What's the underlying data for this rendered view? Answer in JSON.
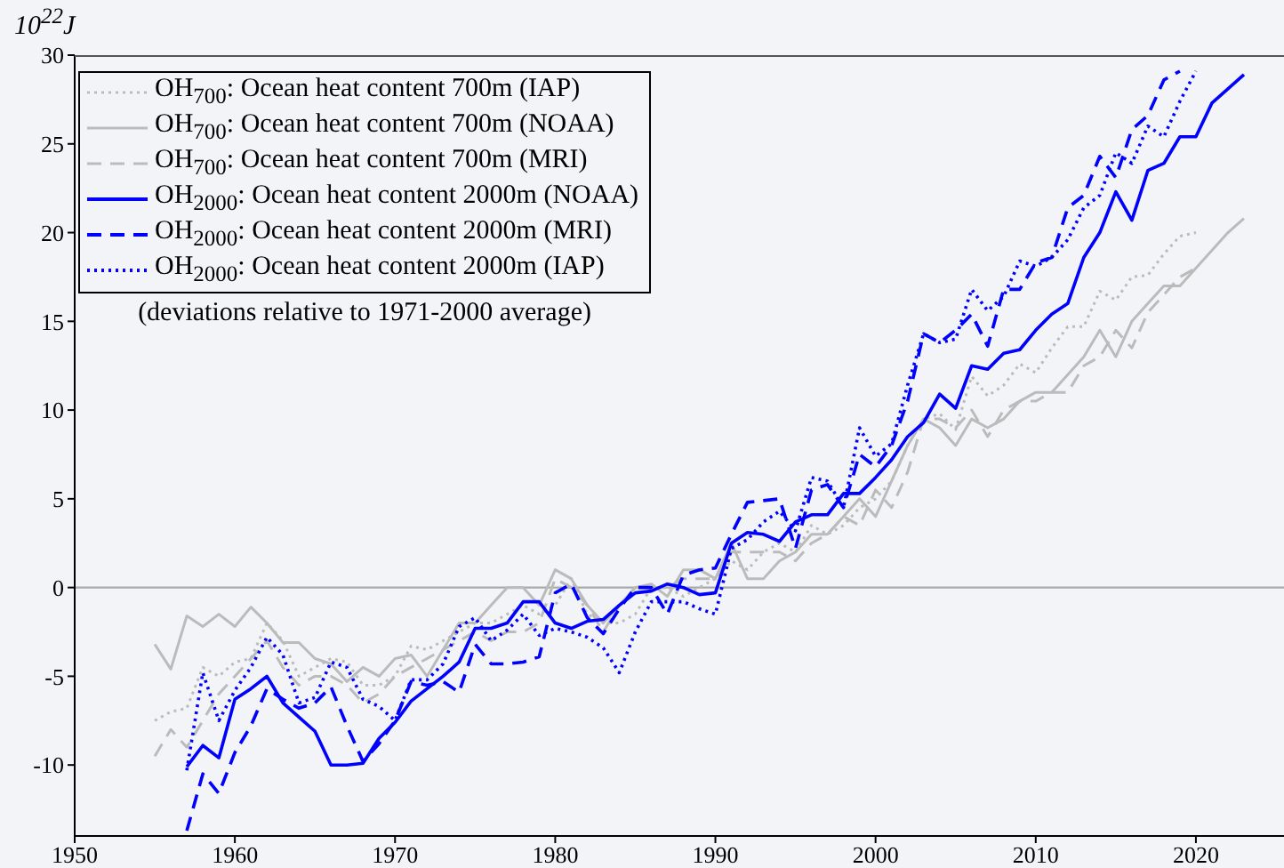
{
  "chart_data": {
    "type": "line",
    "ylabel": "10$^{22}$J",
    "annotations": [
      "(deviations relative to 1971-2000 average)"
    ],
    "xlim": [
      1950,
      2025.5
    ],
    "xticks": [
      1950,
      1960,
      1970,
      1980,
      1990,
      2000,
      2010,
      2020
    ],
    "ylim": [
      -14,
      30
    ],
    "yticks": [
      -10,
      -5,
      0,
      5,
      10,
      15,
      20,
      25,
      30
    ],
    "grid": false,
    "legend": "top left",
    "marker": "none",
    "ref_lines": [
      {
        "axis": "y",
        "value": 0,
        "color": "#aaaaaa"
      }
    ],
    "series": [
      {
        "name": "OH$_{700}$: Ocean heat content 700m (IAP)",
        "color": "#bbbbbb",
        "line_style": "dotted",
        "x": [
          1955,
          1956,
          1957,
          1958,
          1959,
          1960,
          1961,
          1962,
          1963,
          1964,
          1965,
          1966,
          1967,
          1968,
          1969,
          1970,
          1971,
          1972,
          1973,
          1974,
          1975,
          1976,
          1977,
          1978,
          1979,
          1980,
          1981,
          1982,
          1983,
          1984,
          1985,
          1986,
          1987,
          1988,
          1989,
          1990,
          1991,
          1992,
          1993,
          1994,
          1995,
          1996,
          1997,
          1998,
          1999,
          2000,
          2001,
          2002,
          2003,
          2004,
          2005,
          2006,
          2007,
          2008,
          2009,
          2010,
          2011,
          2012,
          2013,
          2014,
          2015,
          2016,
          2017,
          2018,
          2019,
          2020
        ],
        "values": [
          -7.5,
          -7,
          -6.8,
          -4.5,
          -5,
          -4.2,
          -4,
          -2,
          -3,
          -5,
          -4.5,
          -4,
          -4.2,
          -5.5,
          -5.5,
          -5,
          -3.3,
          -3.5,
          -3,
          -2.5,
          -2,
          -2,
          -1.5,
          -1,
          -1.5,
          -1,
          0.5,
          -1.5,
          -2,
          -2,
          -1.5,
          0,
          0,
          -0.5,
          0,
          0.5,
          1.5,
          1,
          2,
          2.5,
          2,
          3.5,
          3,
          3.5,
          4.5,
          5,
          6,
          8,
          9.5,
          9.8,
          8.9,
          11.9,
          10.8,
          11.4,
          12.6,
          12.1,
          13.5,
          14.7,
          14.7,
          16.7,
          16.2,
          17.5,
          17.6,
          18.8,
          19.8,
          20
        ]
      },
      {
        "name": "OH$_{700}$: Ocean heat content 700m (NOAA)",
        "color": "#bbbbbb",
        "line_style": "solid",
        "x": [
          1955,
          1956,
          1957,
          1958,
          1959,
          1960,
          1961,
          1962,
          1963,
          1964,
          1965,
          1966,
          1967,
          1968,
          1969,
          1970,
          1971,
          1972,
          1973,
          1974,
          1975,
          1976,
          1977,
          1978,
          1979,
          1980,
          1981,
          1982,
          1983,
          1984,
          1985,
          1986,
          1987,
          1988,
          1989,
          1990,
          1991,
          1992,
          1993,
          1994,
          1995,
          1996,
          1997,
          1998,
          1999,
          2000,
          2001,
          2002,
          2003,
          2004,
          2005,
          2006,
          2007,
          2008,
          2009,
          2010,
          2011,
          2012,
          2013,
          2014,
          2015,
          2016,
          2017,
          2018,
          2019,
          2020,
          2021,
          2022,
          2023
        ],
        "values": [
          -3.2,
          -4.6,
          -1.6,
          -2.2,
          -1.5,
          -2.2,
          -1.1,
          -2,
          -3.1,
          -3.1,
          -4,
          -4.3,
          -5.3,
          -4.5,
          -5,
          -4,
          -3.8,
          -5,
          -3.5,
          -2,
          -2,
          -1,
          0,
          0,
          -1,
          1,
          0.5,
          -1,
          -2,
          -1,
          0,
          0.2,
          -0.5,
          1,
          1,
          0.5,
          2.5,
          0.5,
          0.5,
          1.5,
          2,
          3,
          3,
          4,
          5,
          4,
          6,
          8,
          9.5,
          9,
          8,
          9.5,
          9,
          9.5,
          10.5,
          11,
          11,
          12,
          13,
          14.5,
          13,
          15,
          16,
          17,
          17,
          18,
          19,
          20,
          20.8
        ]
      },
      {
        "name": "OH$_{700}$: Ocean heat content 700m (MRI)",
        "color": "#bbbbbb",
        "line_style": "dashed",
        "x": [
          1955,
          1956,
          1957,
          1958,
          1959,
          1960,
          1961,
          1962,
          1963,
          1964,
          1965,
          1966,
          1967,
          1968,
          1969,
          1970,
          1971,
          1972,
          1973,
          1974,
          1975,
          1976,
          1977,
          1978,
          1979,
          1980,
          1981,
          1982,
          1983,
          1984,
          1985,
          1986,
          1987,
          1988,
          1989,
          1990,
          1991,
          1992,
          1993,
          1994,
          1995,
          1996,
          1997,
          1998,
          1999,
          2000,
          2001,
          2002,
          2003,
          2004,
          2005,
          2006,
          2007,
          2008,
          2009,
          2010,
          2011,
          2012,
          2013,
          2014,
          2015,
          2016,
          2017,
          2018,
          2019,
          2020
        ],
        "values": [
          -9.5,
          -8,
          -9,
          -7.5,
          -6,
          -5,
          -4,
          -3,
          -4.5,
          -5.5,
          -5,
          -5,
          -5.5,
          -6.5,
          -6,
          -5,
          -4.5,
          -4,
          -3.5,
          -3,
          -2.5,
          -3,
          -2.5,
          -2.5,
          -2,
          0.5,
          0,
          -1,
          -2.5,
          -1,
          0,
          0,
          0,
          0.5,
          0.5,
          0.5,
          2,
          2,
          2,
          2,
          1.5,
          2.5,
          3,
          4,
          3.5,
          5.5,
          4.5,
          6.5,
          9.5,
          9.5,
          9,
          10,
          8.5,
          10,
          10.5,
          10.5,
          11,
          11,
          12.5,
          13,
          14.5,
          13.5,
          15.5,
          16.5,
          17.5,
          18
        ]
      },
      {
        "name": "OH$_{2000}$: Ocean heat content 2000m (NOAA)",
        "color": "#0000ff",
        "line_style": "solid",
        "x": [
          1957,
          1958,
          1959,
          1960,
          1961,
          1962,
          1963,
          1964,
          1965,
          1966,
          1967,
          1968,
          1969,
          1970,
          1971,
          1972,
          1973,
          1974,
          1975,
          1976,
          1977,
          1978,
          1979,
          1980,
          1981,
          1982,
          1983,
          1984,
          1985,
          1986,
          1987,
          1988,
          1989,
          1990,
          1991,
          1992,
          1993,
          1994,
          1995,
          1996,
          1997,
          1998,
          1999,
          2000,
          2001,
          2002,
          2003,
          2004,
          2005,
          2006,
          2007,
          2008,
          2009,
          2010,
          2011,
          2012,
          2013,
          2014,
          2015,
          2016,
          2017,
          2018,
          2019,
          2020,
          2021,
          2022,
          2023
        ],
        "values": [
          -10.1,
          -8.9,
          -9.6,
          -6.3,
          -5.7,
          -5,
          -6.5,
          -7.3,
          -8.1,
          -10,
          -10,
          -9.9,
          -8.5,
          -7.6,
          -6.4,
          -5.7,
          -5,
          -4.2,
          -2.3,
          -2.3,
          -2,
          -0.8,
          -0.8,
          -2,
          -2.3,
          -1.9,
          -1.8,
          -1,
          -0.3,
          -0.2,
          0.2,
          0,
          -0.4,
          -0.3,
          2.5,
          3.1,
          3,
          2.6,
          3.7,
          4.1,
          4.1,
          5.3,
          5.3,
          6.2,
          7.2,
          8.5,
          9.3,
          10.9,
          10.1,
          12.5,
          12.3,
          13.2,
          13.4,
          14.5,
          15.4,
          16,
          18.6,
          20,
          22.3,
          20.7,
          23.5,
          23.9,
          25.4,
          25.4,
          27.3,
          28.1,
          28.9
        ]
      },
      {
        "name": "OH$_{2000}$: Ocean heat content 2000m (MRI)",
        "color": "#0000ff",
        "line_style": "dashed",
        "x": [
          1957,
          1958,
          1959,
          1960,
          1961,
          1962,
          1963,
          1964,
          1965,
          1966,
          1967,
          1968,
          1969,
          1970,
          1971,
          1972,
          1973,
          1974,
          1975,
          1976,
          1977,
          1978,
          1979,
          1980,
          1981,
          1982,
          1983,
          1984,
          1985,
          1986,
          1987,
          1988,
          1989,
          1990,
          1991,
          1992,
          1993,
          1994,
          1995,
          1996,
          1997,
          1998,
          1999,
          2000,
          2001,
          2002,
          2003,
          2004,
          2005,
          2006,
          2007,
          2008,
          2009,
          2010,
          2011,
          2012,
          2013,
          2014,
          2015,
          2016,
          2017,
          2018,
          2019
        ],
        "values": [
          -13.7,
          -10.5,
          -11.6,
          -9.3,
          -7.8,
          -5.7,
          -6.3,
          -6.8,
          -6.5,
          -5.6,
          -7.8,
          -9.8,
          -8.8,
          -7.5,
          -5.3,
          -5.5,
          -5.3,
          -5.9,
          -3.2,
          -4.3,
          -4.3,
          -4.2,
          -3.9,
          -0.3,
          0.2,
          -1.7,
          -2.6,
          -1.2,
          0,
          0,
          -1.5,
          0.7,
          1,
          1.1,
          3,
          4.8,
          4.9,
          5,
          2.2,
          5.5,
          5.8,
          4.5,
          7.5,
          6.8,
          8,
          10.5,
          14.3,
          13.8,
          14.5,
          15.4,
          13.6,
          16.8,
          16.8,
          18.3,
          18.6,
          21.4,
          22.1,
          24.3,
          23.1,
          25.8,
          26.6,
          28.6,
          29.1
        ]
      },
      {
        "name": "OH$_{2000}$: Ocean heat content 2000m (IAP)",
        "color": "#0000ff",
        "line_style": "dotted",
        "x": [
          1957,
          1958,
          1959,
          1960,
          1961,
          1962,
          1963,
          1964,
          1965,
          1966,
          1967,
          1968,
          1969,
          1970,
          1971,
          1972,
          1973,
          1974,
          1975,
          1976,
          1977,
          1978,
          1979,
          1980,
          1981,
          1982,
          1983,
          1984,
          1985,
          1986,
          1987,
          1988,
          1989,
          1990,
          1991,
          1992,
          1993,
          1994,
          1995,
          1996,
          1997,
          1998,
          1999,
          2000,
          2001,
          2002,
          2003,
          2004,
          2005,
          2006,
          2007,
          2008,
          2009,
          2010,
          2011,
          2012,
          2013,
          2014,
          2015,
          2016,
          2017,
          2018,
          2019,
          2020
        ],
        "values": [
          -10.3,
          -4.8,
          -7.5,
          -5.8,
          -4.5,
          -2.8,
          -3.8,
          -6.5,
          -6.2,
          -4.2,
          -4.5,
          -6.3,
          -6.7,
          -7.5,
          -5.2,
          -5.2,
          -4.3,
          -2.2,
          -1.7,
          -3,
          -2.4,
          -1.5,
          -2.7,
          -2.3,
          -2.5,
          -2.8,
          -3.4,
          -4.8,
          -2.5,
          -0.8,
          -0.8,
          -0.8,
          -1.2,
          -1.5,
          2.2,
          2.7,
          3.7,
          4.3,
          3.2,
          6.2,
          6,
          4.5,
          9,
          7.4,
          8.1,
          11.4,
          14.3,
          13.8,
          14,
          16.8,
          15.6,
          16.4,
          18.4,
          18.1,
          18.6,
          19.6,
          21.4,
          22.1,
          24.5,
          23.9,
          26,
          25.4,
          27.4,
          29.1
        ]
      }
    ]
  }
}
